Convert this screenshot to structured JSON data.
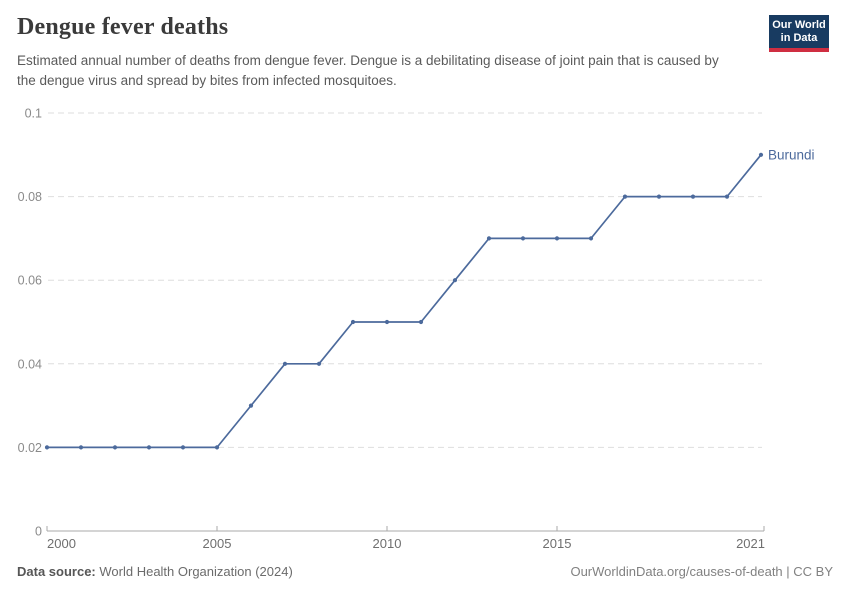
{
  "header": {
    "title": "Dengue fever deaths",
    "subtitle": "Estimated annual number of deaths from dengue fever. Dengue is a debilitating disease of joint pain that is caused by the dengue virus and spread by bites from infected mosquitoes.",
    "logo": {
      "line1": "Our World",
      "line2": "in Data"
    }
  },
  "chart_data": {
    "type": "line",
    "title": "Dengue fever deaths",
    "x": [
      2000,
      2001,
      2002,
      2003,
      2004,
      2005,
      2006,
      2007,
      2008,
      2009,
      2010,
      2011,
      2012,
      2013,
      2014,
      2015,
      2016,
      2017,
      2018,
      2019,
      2020,
      2021
    ],
    "series": [
      {
        "name": "Burundi",
        "color": "#4C6A9C",
        "values": [
          0.02,
          0.02,
          0.02,
          0.02,
          0.02,
          0.02,
          0.03,
          0.04,
          0.04,
          0.05,
          0.05,
          0.05,
          0.06,
          0.07,
          0.07,
          0.07,
          0.07,
          0.08,
          0.08,
          0.08,
          0.08,
          0.09
        ]
      }
    ],
    "xlim": [
      2000,
      2021
    ],
    "ylim": [
      0,
      0.1
    ],
    "x_ticks": [
      2000,
      2005,
      2010,
      2015,
      2021
    ],
    "x_tick_labels": [
      "2000",
      "2005",
      "2010",
      "2015",
      "2021"
    ],
    "y_ticks": [
      0,
      0.02,
      0.04,
      0.06,
      0.08,
      0.1
    ],
    "y_tick_labels": [
      "0",
      "0.02",
      "0.04",
      "0.06",
      "0.08",
      "0.1"
    ],
    "grid": "horizontal-dashed",
    "legend_position": "line-end"
  },
  "footer": {
    "source_label": "Data source:",
    "source_value": "World Health Organization (2024)",
    "attribution": "OurWorldinData.org/causes-of-death | CC BY"
  },
  "colors": {
    "line": "#4C6A9C",
    "grid": "#dedede",
    "axis": "#a8a8a8",
    "y_tick_text": "#8a8a8a",
    "x_tick_text": "#6f6f6f",
    "logo_bg": "#183b61",
    "logo_stripe": "#cf2e41"
  }
}
